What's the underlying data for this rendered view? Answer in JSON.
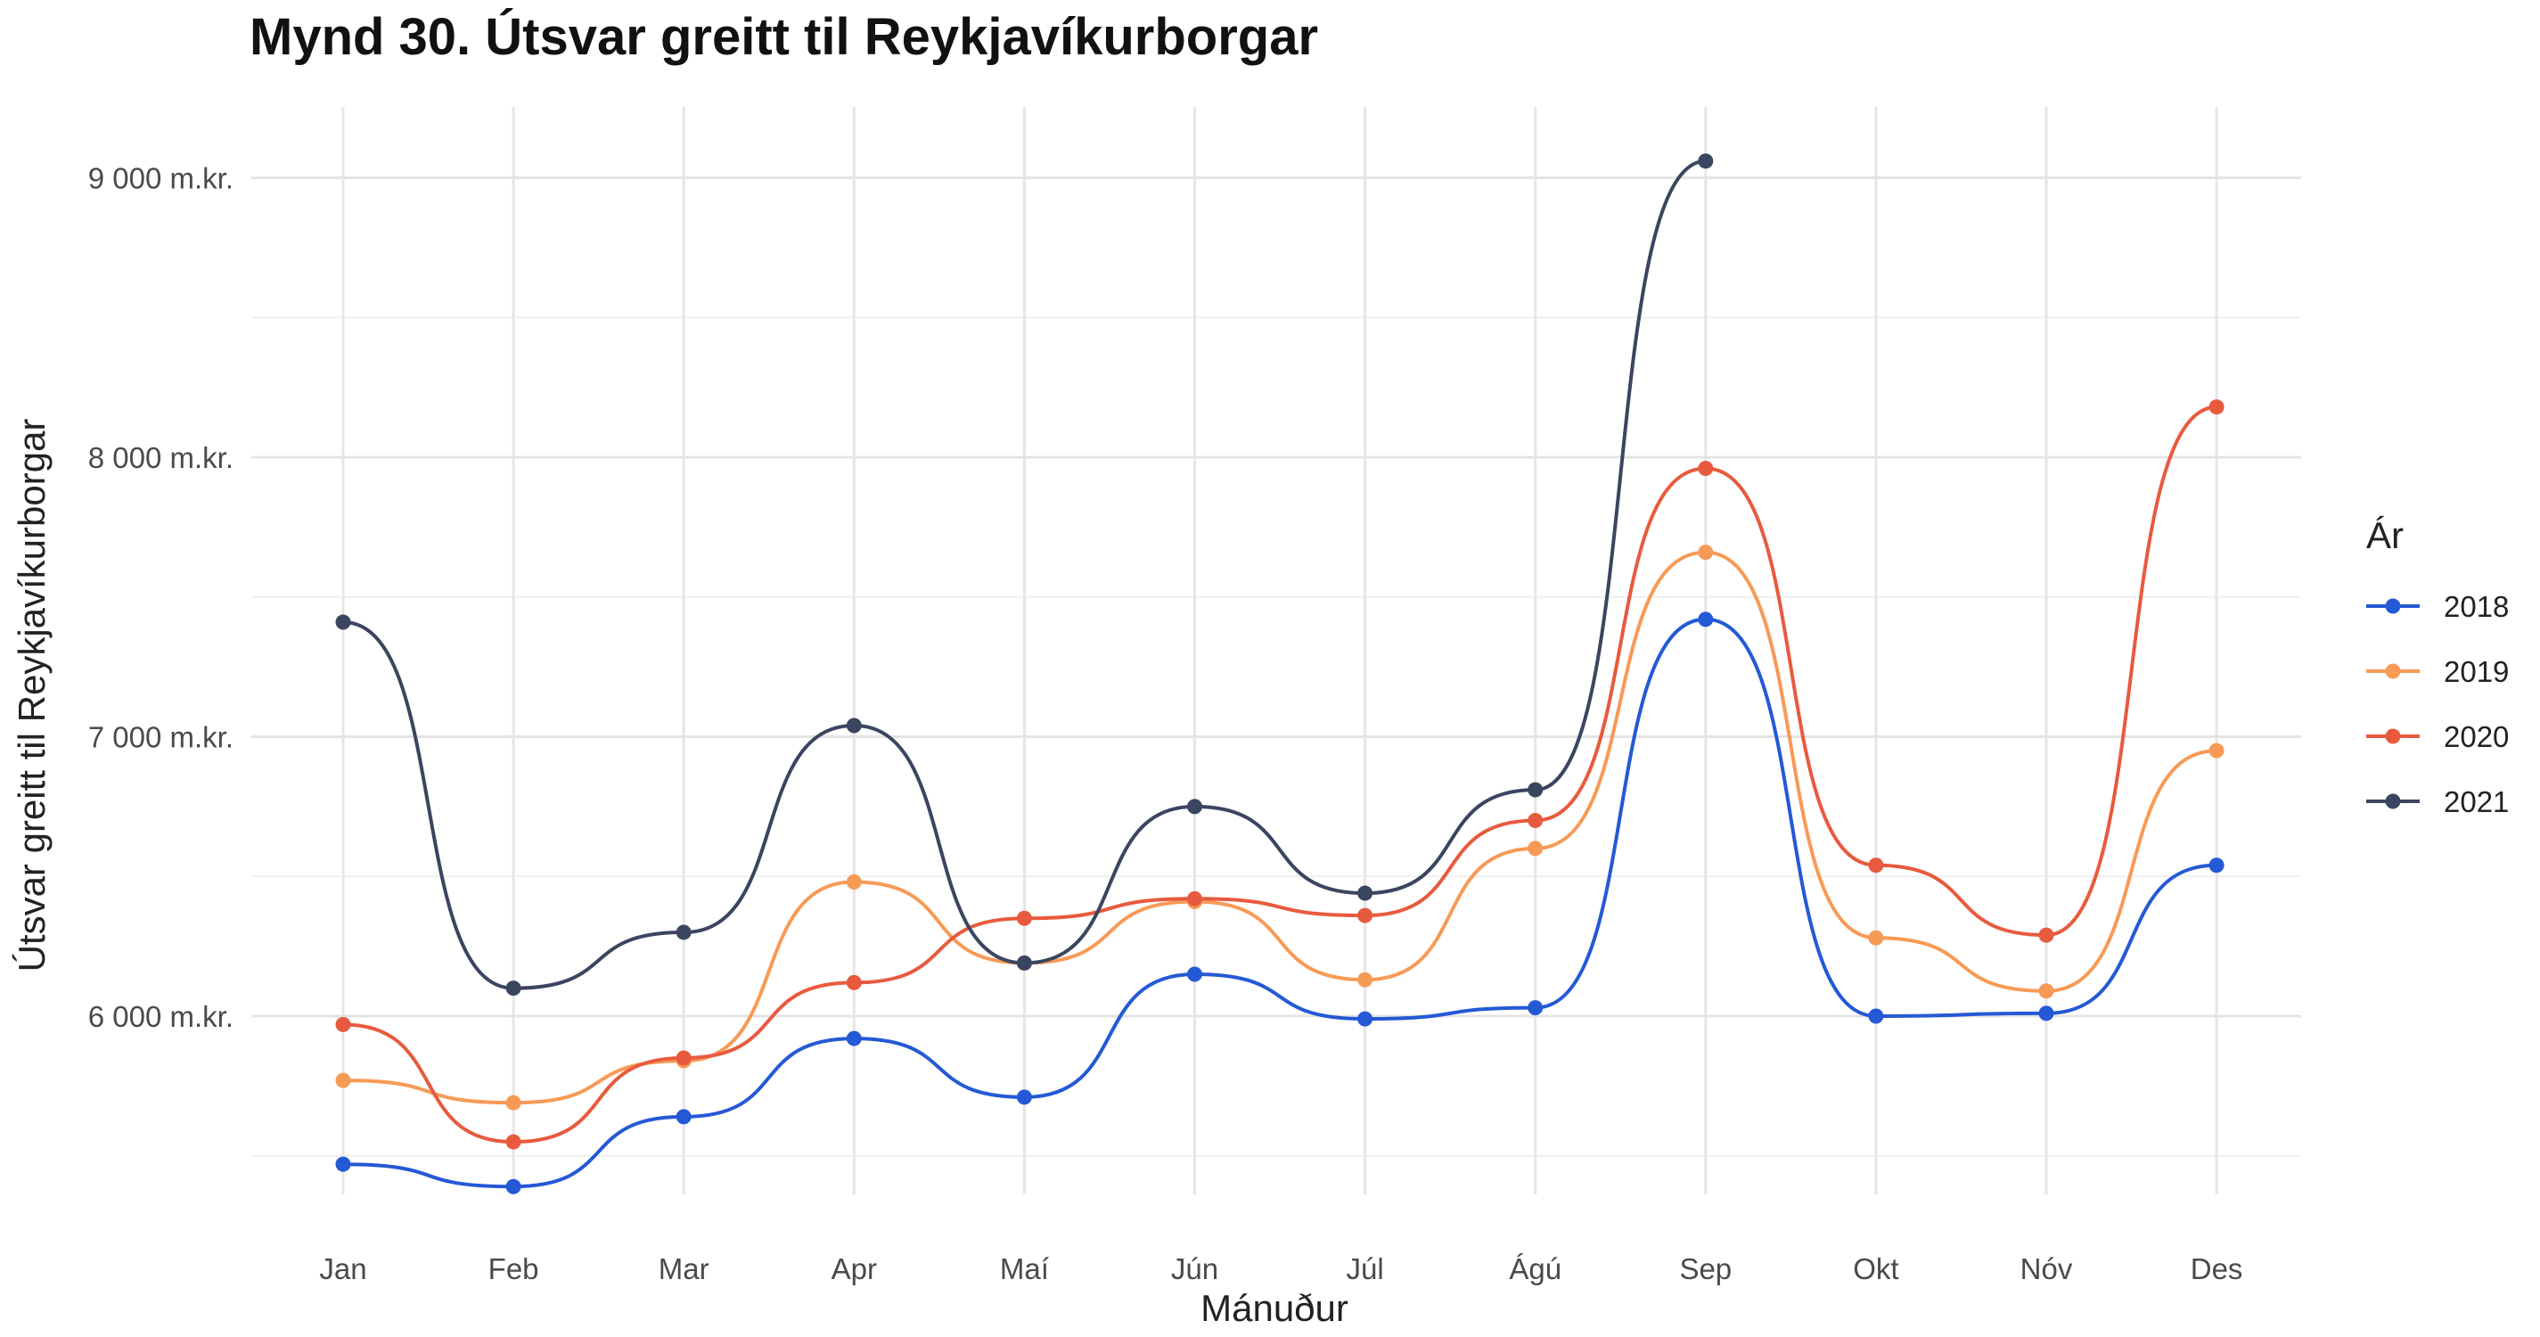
{
  "chart_data": {
    "type": "line",
    "title": "Mynd 30. Útsvar greitt til Reykjavíkurborgar",
    "xlabel": "Mánuður",
    "ylabel": "Útsvar greitt til Reykjavíkurborgar",
    "categories": [
      "Jan",
      "Feb",
      "Mar",
      "Apr",
      "Maí",
      "Jún",
      "Júl",
      "Ágú",
      "Sep",
      "Okt",
      "Nóv",
      "Des"
    ],
    "y_ticks": [
      {
        "value": 6000,
        "label": "6 000 m.kr."
      },
      {
        "value": 7000,
        "label": "7 000 m.kr."
      },
      {
        "value": 8000,
        "label": "8 000 m.kr."
      },
      {
        "value": 9000,
        "label": "9 000 m.kr."
      }
    ],
    "ylim": [
      5340,
      9300
    ],
    "grid": true,
    "legend": {
      "title": "Ár",
      "position": "right"
    },
    "series": [
      {
        "name": "2018",
        "color": "#2459d6",
        "values": [
          5470,
          5390,
          5640,
          5920,
          5710,
          6150,
          5990,
          6030,
          7420,
          6000,
          6010,
          6540
        ]
      },
      {
        "name": "2019",
        "color": "#f79a56",
        "values": [
          5770,
          5690,
          5840,
          6480,
          6190,
          6410,
          6130,
          6600,
          7660,
          6280,
          6090,
          6950
        ]
      },
      {
        "name": "2020",
        "color": "#e85a3e",
        "values": [
          5970,
          5550,
          5850,
          6120,
          6350,
          6420,
          6360,
          6700,
          7960,
          6540,
          6290,
          8180
        ]
      },
      {
        "name": "2021",
        "color": "#3a4560",
        "values": [
          7410,
          6100,
          6300,
          7040,
          6190,
          6750,
          6440,
          6810,
          9060,
          null,
          null,
          null
        ]
      }
    ]
  }
}
